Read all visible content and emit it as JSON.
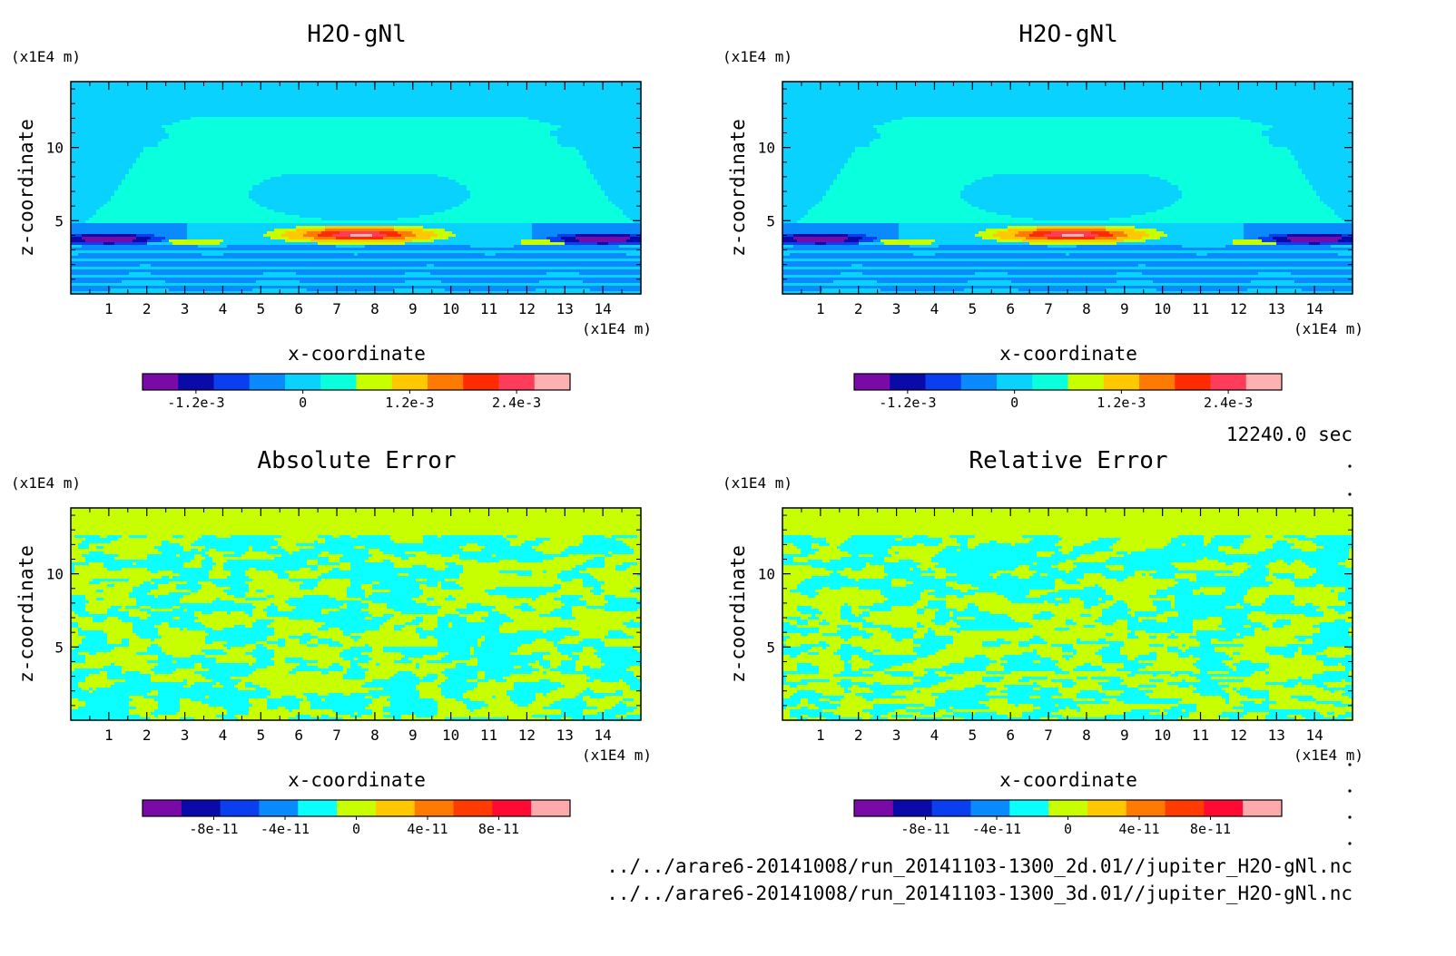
{
  "colors": {
    "levels": [
      "#7a0aa8",
      "#0a0aa8",
      "#0a3ff0",
      "#0a8aff",
      "#0ad2ff",
      "#0affdc",
      "#c8ff00",
      "#ffc800",
      "#ff7a00",
      "#ff2a00",
      "#ff3c5a",
      "#ffb0b0"
    ],
    "panel_bg": "#0ab4ff"
  },
  "info": {
    "time": "12240.0 sec",
    "file1": "../../arare6-20141008/run_20141103-1300_2d.01//jupiter_H2O-gNl.nc",
    "file2": "../../arare6-20141008/run_20141103-1300_3d.01//jupiter_H2O-gNl.nc"
  },
  "chart_data": [
    {
      "type": "heatmap",
      "title": "H2O-gNl",
      "xlabel": "x-coordinate",
      "ylabel": "z-coordinate",
      "xunit": "(x1E4 m)",
      "zunit": "(x1E4 m)",
      "xlim": [
        0,
        15
      ],
      "zlim": [
        0,
        14.5
      ],
      "xticks": [
        "1",
        "2",
        "3",
        "4",
        "5",
        "6",
        "7",
        "8",
        "9",
        "10",
        "11",
        "12",
        "13",
        "14"
      ],
      "zticks": [
        "5",
        "10"
      ],
      "colorbar": {
        "range": [
          -0.0018,
          0.003
        ],
        "labels": [
          "-1.2e-3",
          "0",
          "1.2e-3",
          "2.4e-3"
        ],
        "colors": [
          "#7a0aa8",
          "#0a0aa8",
          "#0a3ff0",
          "#0a8aff",
          "#0ad2ff",
          "#0affdc",
          "#c8ff00",
          "#ffc800",
          "#ff7a00",
          "#ff2a00",
          "#ff3c5a",
          "#ffb0b0"
        ]
      },
      "field": "h2o",
      "value_range": [
        -0.0014,
        0.003
      ],
      "max_location": {
        "x": 7.6,
        "z": 4.0
      },
      "min_locations": [
        {
          "x": 1.0,
          "z": 3.8
        },
        {
          "x": 14.0,
          "z": 3.8
        }
      ]
    },
    {
      "type": "heatmap",
      "title": "H2O-gNl",
      "xlabel": "x-coordinate",
      "ylabel": "z-coordinate",
      "xunit": "(x1E4 m)",
      "zunit": "(x1E4 m)",
      "xlim": [
        0,
        15
      ],
      "zlim": [
        0,
        14.5
      ],
      "xticks": [
        "1",
        "2",
        "3",
        "4",
        "5",
        "6",
        "7",
        "8",
        "9",
        "10",
        "11",
        "12",
        "13",
        "14"
      ],
      "zticks": [
        "5",
        "10"
      ],
      "colorbar": {
        "range": [
          -0.0018,
          0.003
        ],
        "labels": [
          "-1.2e-3",
          "0",
          "1.2e-3",
          "2.4e-3"
        ],
        "colors": [
          "#7a0aa8",
          "#0a0aa8",
          "#0a3ff0",
          "#0a8aff",
          "#0ad2ff",
          "#0affdc",
          "#c8ff00",
          "#ffc800",
          "#ff7a00",
          "#ff2a00",
          "#ff3c5a",
          "#ffb0b0"
        ]
      },
      "field": "h2o",
      "value_range": [
        -0.0014,
        0.003
      ],
      "max_location": {
        "x": 7.6,
        "z": 4.0
      },
      "min_locations": [
        {
          "x": 1.0,
          "z": 3.8
        },
        {
          "x": 14.0,
          "z": 3.8
        }
      ]
    },
    {
      "type": "heatmap",
      "title": "Absolute Error",
      "xlabel": "x-coordinate",
      "ylabel": "z-coordinate",
      "xunit": "(x1E4 m)",
      "zunit": "(x1E4 m)",
      "xlim": [
        0,
        15
      ],
      "zlim": [
        0,
        14.5
      ],
      "xticks": [
        "1",
        "2",
        "3",
        "4",
        "5",
        "6",
        "7",
        "8",
        "9",
        "10",
        "11",
        "12",
        "13",
        "14"
      ],
      "zticks": [
        "5",
        "10"
      ],
      "colorbar": {
        "range": [
          -1.2e-10,
          1.2e-10
        ],
        "labels": [
          "-8e-11",
          "-4e-11",
          "0",
          "4e-11",
          "8e-11"
        ],
        "colors": [
          "#7a0aa8",
          "#0a0aa8",
          "#0a3ff0",
          "#0a8aff",
          "#0affff",
          "#c8ff00",
          "#ffc800",
          "#ff7a00",
          "#ff3c00",
          "#ff0a32",
          "#ffaaaa"
        ]
      },
      "field": "noise",
      "values_present": [
        "0 to 2e-11",
        "-2e-11 to 0"
      ],
      "uniform_top_above_z": 12.5
    },
    {
      "type": "heatmap",
      "title": "Relative Error",
      "xlabel": "x-coordinate",
      "ylabel": "z-coordinate",
      "xunit": "(x1E4 m)",
      "zunit": "(x1E4 m)",
      "xlim": [
        0,
        15
      ],
      "zlim": [
        0,
        14.5
      ],
      "xticks": [
        "1",
        "2",
        "3",
        "4",
        "5",
        "6",
        "7",
        "8",
        "9",
        "10",
        "11",
        "12",
        "13",
        "14"
      ],
      "zticks": [
        "5",
        "10"
      ],
      "colorbar": {
        "range": [
          -1.2e-10,
          1.2e-10
        ],
        "labels": [
          "-8e-11",
          "-4e-11",
          "0",
          "4e-11",
          "8e-11"
        ],
        "colors": [
          "#7a0aa8",
          "#0a0aa8",
          "#0a3ff0",
          "#0a8aff",
          "#0affff",
          "#c8ff00",
          "#ffc800",
          "#ff7a00",
          "#ff3c00",
          "#ff0a32",
          "#ffaaaa"
        ]
      },
      "field": "noise",
      "values_present": [
        "0 to 2e-11",
        "-2e-11 to 0"
      ],
      "uniform_top_above_z": 12.5
    }
  ]
}
